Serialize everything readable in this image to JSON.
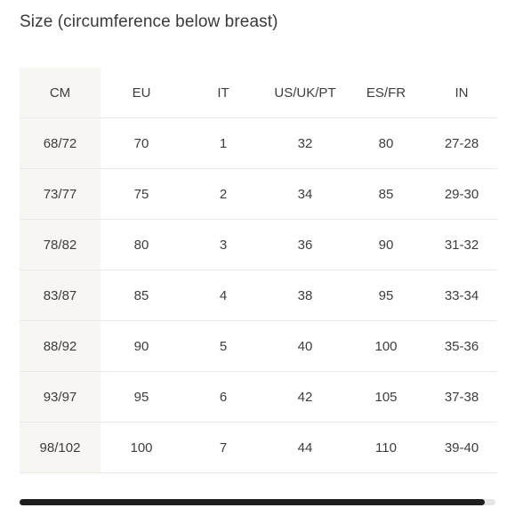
{
  "title": "Size (circumference below breast)",
  "table": {
    "headers": [
      "CM",
      "EU",
      "IT",
      "US/UK/PT",
      "ES/FR",
      "IN"
    ],
    "rows": [
      [
        "68/72",
        "70",
        "1",
        "32",
        "80",
        "27-28"
      ],
      [
        "73/77",
        "75",
        "2",
        "34",
        "85",
        "29-30"
      ],
      [
        "78/82",
        "80",
        "3",
        "36",
        "90",
        "31-32"
      ],
      [
        "83/87",
        "85",
        "4",
        "38",
        "95",
        "33-34"
      ],
      [
        "88/92",
        "90",
        "5",
        "40",
        "100",
        "35-36"
      ],
      [
        "93/97",
        "95",
        "6",
        "42",
        "105",
        "37-38"
      ],
      [
        "98/102",
        "100",
        "7",
        "44",
        "110",
        "39-40"
      ]
    ]
  },
  "colors": {
    "first_column_bg": "#f7f6f3",
    "row_divider": "#e9e9e9",
    "scrollbar_thumb": "#1e1e1e",
    "scrollbar_track": "#e6e6e6"
  }
}
